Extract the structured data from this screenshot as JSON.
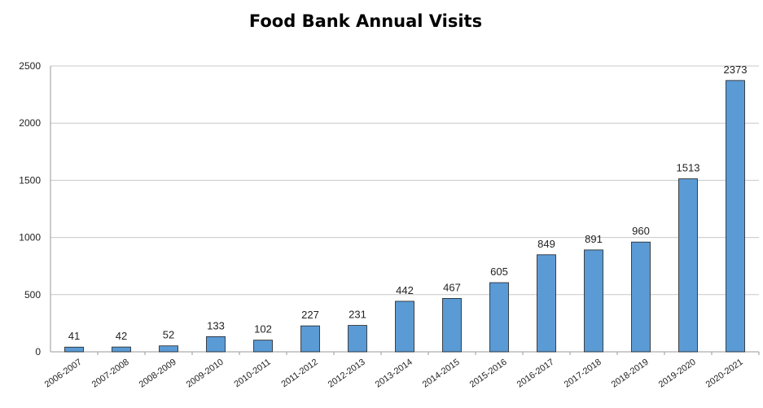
{
  "chart_data": {
    "type": "bar",
    "title": "Food Bank Annual Visits",
    "xlabel": "",
    "ylabel": "",
    "categories": [
      "2006-2007",
      "2007-2008",
      "2008-2009",
      "2009-2010",
      "2010-2011",
      "2011-2012",
      "2012-2013",
      "2013-2014",
      "2014-2015",
      "2015-2016",
      "2016-2017",
      "2017-2018",
      "2018-2019",
      "2019-2020",
      "2020-2021"
    ],
    "values": [
      41,
      42,
      52,
      133,
      102,
      227,
      231,
      442,
      467,
      605,
      849,
      891,
      960,
      1513,
      2373
    ],
    "ylim": [
      0,
      2500
    ],
    "yticks": [
      0,
      500,
      1000,
      1500,
      2000,
      2500
    ],
    "grid": true,
    "legend": "none",
    "colors": {
      "bar": "#5b9bd5",
      "bar_stroke": "#1f1f1f",
      "grid": "#c8c8c8",
      "axis": "#9a9a9a"
    }
  }
}
